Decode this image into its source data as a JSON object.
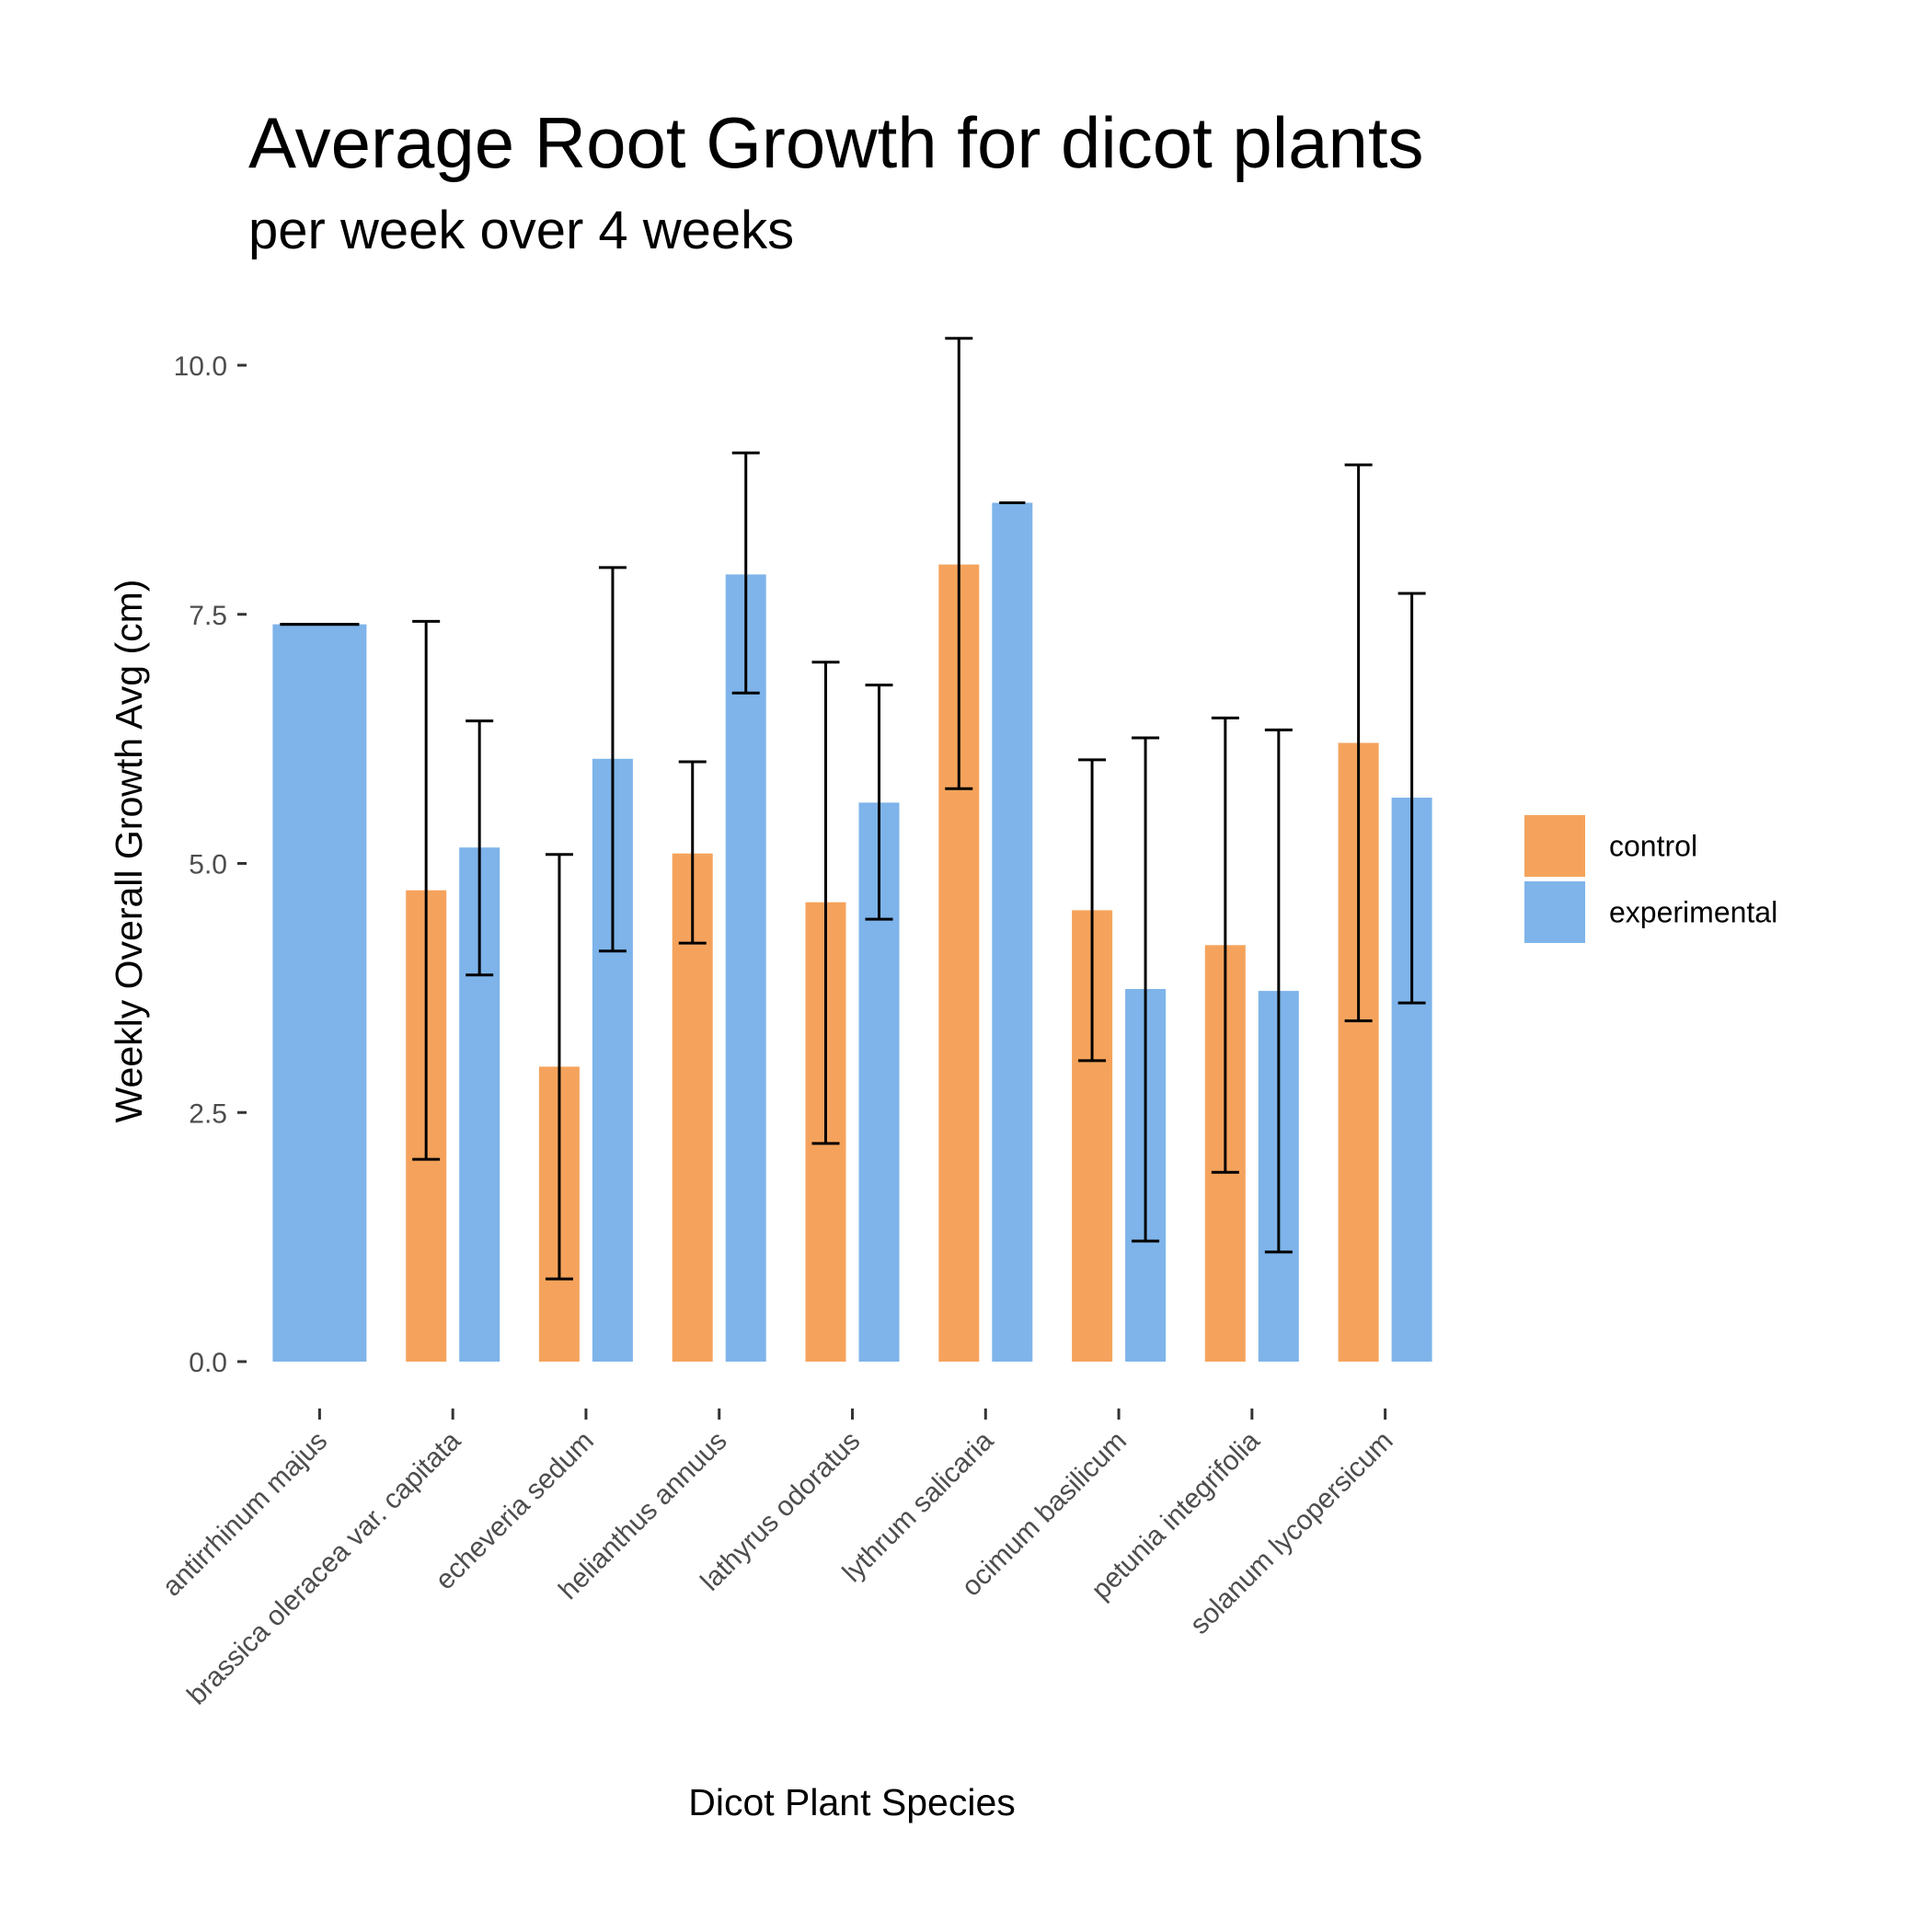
{
  "chart_data": {
    "type": "bar",
    "title": "Average Root Growth for dicot plants",
    "subtitle": "per week over 4 weeks",
    "xlabel": "Dicot Plant Species",
    "ylabel": "Weekly Overall Growth Avg (cm)",
    "ylim": [
      -0.25,
      10.8
    ],
    "yticks": [
      0.0,
      2.5,
      5.0,
      7.5,
      10.0
    ],
    "ytick_labels": [
      "0.0",
      "2.5",
      "5.0",
      "7.5",
      "10.0"
    ],
    "categories": [
      "antirrhinum majus",
      "brassica oleracea var. capitata",
      "echeveria sedum",
      "helianthus annuus",
      "lathyrus odoratus",
      "lythrum salicaria",
      "ocimum basilicum",
      "petunia integrifolia",
      "solanum lycopersicum"
    ],
    "series": [
      {
        "name": "control",
        "color": "#F5A35C",
        "values": [
          null,
          4.73,
          2.96,
          5.1,
          4.61,
          8.0,
          4.53,
          4.18,
          6.21
        ],
        "error_low": [
          null,
          2.03,
          0.83,
          4.2,
          2.19,
          5.75,
          3.02,
          1.9,
          3.42
        ],
        "error_high": [
          null,
          7.43,
          5.09,
          6.02,
          7.02,
          10.27,
          6.04,
          6.46,
          9.0
        ]
      },
      {
        "name": "experimental",
        "color": "#7EB4EA",
        "values": [
          7.4,
          5.16,
          6.05,
          7.9,
          5.61,
          8.62,
          3.74,
          3.72,
          5.66
        ],
        "error_low": [
          7.4,
          3.88,
          4.12,
          6.71,
          4.44,
          8.62,
          1.21,
          1.1,
          3.6
        ],
        "error_high": [
          7.4,
          6.43,
          7.97,
          9.12,
          6.79,
          8.62,
          6.26,
          6.34,
          7.71
        ]
      }
    ],
    "legend_position": "right",
    "grid": false
  }
}
